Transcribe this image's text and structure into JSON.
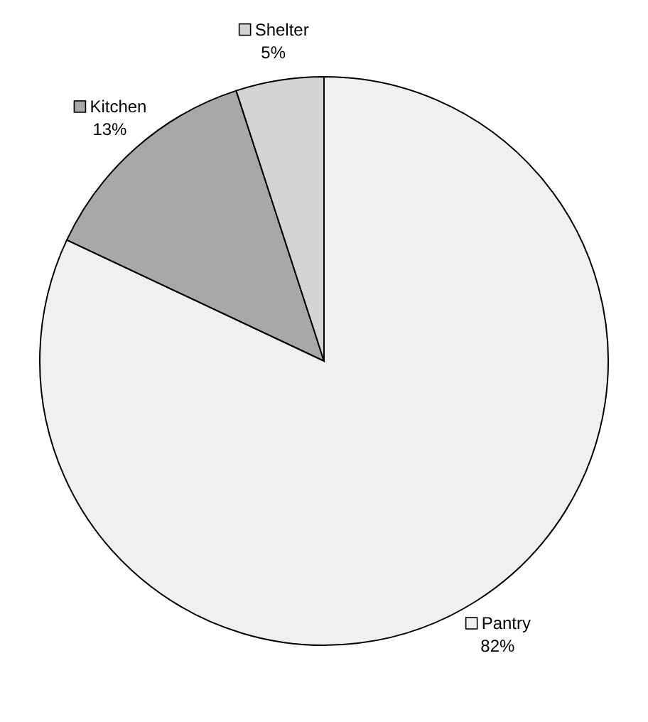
{
  "chart_data": {
    "type": "pie",
    "categories": [
      "Pantry",
      "Kitchen",
      "Shelter"
    ],
    "values": [
      82,
      13,
      5
    ],
    "value_labels": [
      "82%",
      "13%",
      "5%"
    ],
    "colors": [
      "#f0f0f0",
      "#a8a8a8",
      "#d4d4d4"
    ],
    "legend": "top left"
  }
}
